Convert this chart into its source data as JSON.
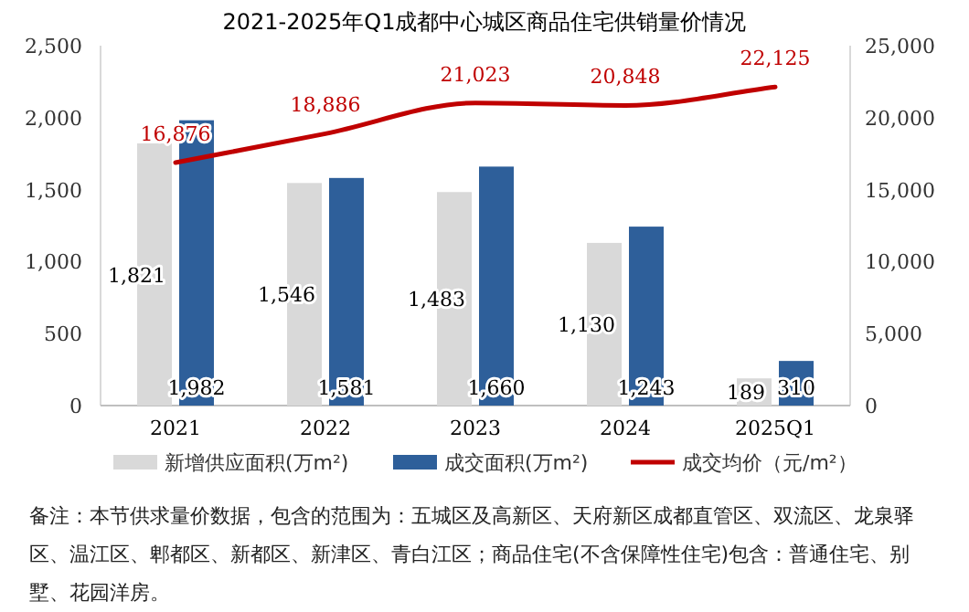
{
  "chart_data": {
    "type": "bar",
    "title": "2021-2025年Q1成都中心城区商品住宅供销量价情况",
    "categories": [
      "2021",
      "2022",
      "2023",
      "2024",
      "2025Q1"
    ],
    "series": [
      {
        "name": "新增供应面积(万m²)",
        "color": "#d9d9d9",
        "values": [
          1821,
          1546,
          1483,
          1130,
          189
        ],
        "value_labels": [
          "1,821",
          "1,546",
          "1,483",
          "1,130",
          "189"
        ]
      },
      {
        "name": "成交面积(万m²)",
        "color": "#2e5f9a",
        "values": [
          1982,
          1581,
          1660,
          1243,
          310
        ],
        "value_labels": [
          "1,982",
          "1,581",
          "1,660",
          "1,243",
          "310"
        ]
      },
      {
        "name": "成交均价（元/m²）",
        "type": "line",
        "axis": "y2",
        "color": "#c00000",
        "values": [
          16876,
          18886,
          21023,
          20848,
          22125
        ],
        "value_labels": [
          "16,876",
          "18,886",
          "21,023",
          "20,848",
          "22,125"
        ]
      }
    ],
    "ylim": [
      0,
      2500
    ],
    "yticks": [
      0,
      500,
      {
        "value": 1000,
        "label": "1,000"
      },
      {
        "value": 1500,
        "label": "1,500"
      },
      {
        "value": 2000,
        "label": "2,000"
      },
      {
        "value": 2500,
        "label": "2,500"
      }
    ],
    "y2lim": [
      0,
      25000
    ],
    "y2ticks": [
      0,
      {
        "value": 5000,
        "label": "5,000"
      },
      {
        "value": 10000,
        "label": "10,000"
      },
      {
        "value": 15000,
        "label": "15,000"
      },
      {
        "value": 20000,
        "label": "20,000"
      },
      {
        "value": 25000,
        "label": "25,000"
      }
    ],
    "grid": false,
    "legend": "bottom",
    "annotations": [
      "备注：本节供求量价数据，包含的范围为：五城区及高新区、天府新区成都直管区、双流区、龙泉驿区、温江区、郫都区、新都区、新津区、青白江区；商品住宅(不含保障性住宅)包含：普通住宅、别墅、花园洋房。"
    ]
  }
}
